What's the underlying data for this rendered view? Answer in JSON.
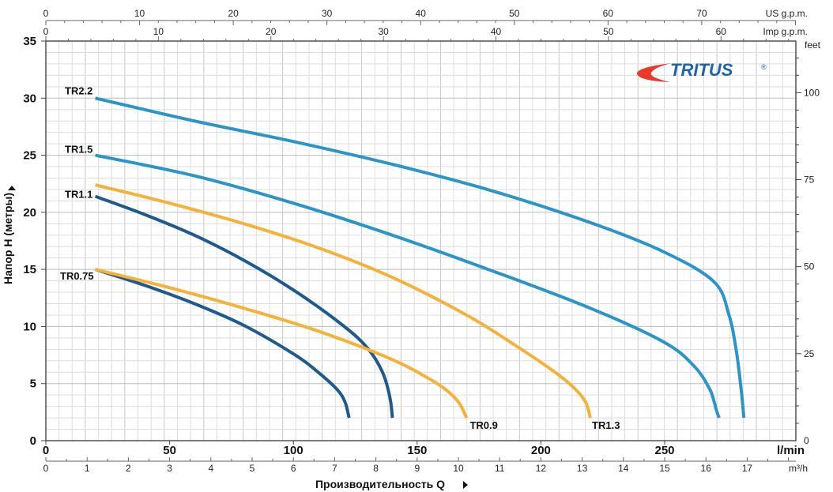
{
  "chart_data": {
    "type": "line",
    "title": "",
    "xlabel": "Производительность  Q",
    "ylabel": "Напор H (метры)",
    "x_unit": "l/min",
    "xlim": [
      0,
      303
    ],
    "ylim": [
      0,
      35
    ],
    "x_ticks": [
      0,
      50,
      100,
      150,
      200,
      250
    ],
    "y_ticks": [
      0,
      5,
      10,
      15,
      20,
      25,
      30,
      35
    ],
    "grid": true,
    "legend": "none",
    "secondary_axes": {
      "us_gpm": {
        "label": "US g.p.m.",
        "ticks": [
          0,
          10,
          20,
          30,
          40,
          50,
          60,
          70
        ]
      },
      "imp_gpm": {
        "label": "Imp g.p.m.",
        "ticks": [
          0,
          10,
          20,
          30,
          40,
          50,
          60
        ]
      },
      "feet": {
        "label": "feet",
        "ticks": [
          0,
          25,
          50,
          75,
          100
        ]
      },
      "m3h": {
        "label": "m³/h",
        "ticks": [
          0,
          1,
          2,
          3,
          4,
          5,
          6,
          7,
          8,
          9,
          10,
          11,
          12,
          13,
          14,
          15,
          16,
          17
        ]
      }
    },
    "series": [
      {
        "name": "TR0.75",
        "color": "#1e5a8e",
        "x": [
          20,
          40,
          60,
          80,
          100,
          110,
          118,
          121,
          122.5
        ],
        "y": [
          15,
          13.6,
          12,
          10.1,
          7.6,
          6.0,
          4.4,
          3.3,
          2.0
        ]
      },
      {
        "name": "TR1.1",
        "color": "#1e5a8e",
        "x": [
          20,
          40,
          60,
          80,
          100,
          120,
          130,
          136,
          139,
          140
        ],
        "y": [
          21.4,
          19.8,
          18.0,
          15.8,
          13.2,
          10.1,
          8.1,
          6.0,
          3.8,
          2.0
        ]
      },
      {
        "name": "TR0.9",
        "color": "#f4b23a",
        "x": [
          20,
          50,
          80,
          110,
          140,
          155,
          162,
          167,
          170
        ],
        "y": [
          15,
          13.4,
          11.6,
          9.6,
          7.1,
          5.4,
          4.4,
          3.3,
          2.0
        ]
      },
      {
        "name": "TR1.3",
        "color": "#f4b23a",
        "x": [
          20,
          50,
          80,
          110,
          140,
          170,
          190,
          205,
          213,
          218,
          220
        ],
        "y": [
          22.4,
          20.8,
          19.0,
          16.9,
          14.3,
          11.0,
          8.3,
          6.1,
          4.7,
          3.4,
          2.0
        ]
      },
      {
        "name": "TR1.5",
        "color": "#2b95c8",
        "x": [
          20,
          60,
          100,
          140,
          180,
          220,
          250,
          262,
          268,
          270,
          271,
          272
        ],
        "y": [
          25,
          23.2,
          20.8,
          18.0,
          14.9,
          11.6,
          8.6,
          6.5,
          4.6,
          3.4,
          2.6,
          2.0
        ]
      },
      {
        "name": "TR2.2",
        "color": "#2b95c8",
        "x": [
          20,
          60,
          100,
          140,
          180,
          220,
          250,
          270,
          276,
          279,
          281,
          282
        ],
        "y": [
          30,
          28.0,
          26.2,
          24.2,
          21.9,
          19.1,
          16.5,
          13.9,
          11.0,
          7.8,
          4.3,
          2.0
        ]
      }
    ],
    "labels": [
      {
        "text": "TR2.2",
        "series": "TR2.2"
      },
      {
        "text": "TR1.5",
        "series": "TR1.5"
      },
      {
        "text": "TR1.1",
        "series": "TR1.1"
      },
      {
        "text": "TR0.75",
        "series": "TR0.75"
      },
      {
        "text": "TR0.9",
        "series": "TR0.9"
      },
      {
        "text": "TR1.3",
        "series": "TR1.3"
      }
    ]
  },
  "logo": {
    "text": "TRITUS",
    "mark": "®"
  }
}
